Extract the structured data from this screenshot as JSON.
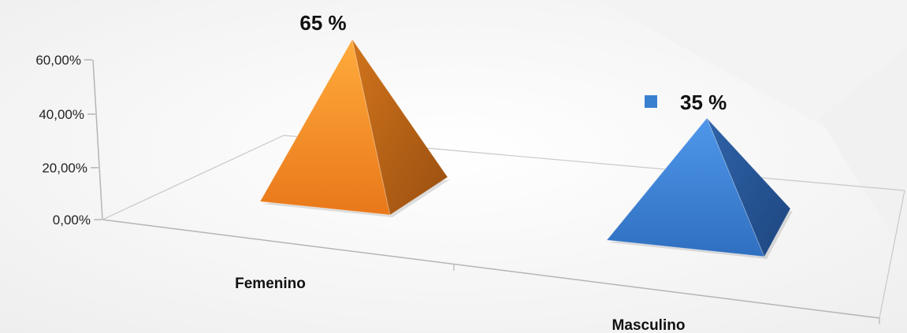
{
  "chart_data": {
    "type": "bar",
    "style": "3d-pyramid",
    "categories": [
      "Femenino",
      "Masculino"
    ],
    "series": [
      {
        "values": [
          0.65,
          0.35
        ],
        "data_labels": [
          "65 %",
          "35 %"
        ],
        "colors": [
          "#f28a22",
          "#3b7fd0"
        ]
      }
    ],
    "y_ticks": [
      "0,00%",
      "20,00%",
      "40,00%",
      "60,00%"
    ],
    "ylim": [
      0,
      0.6
    ],
    "grid": false,
    "legend": false,
    "colors": {
      "orange": "#f28a22",
      "blue": "#3b7fd0",
      "axis": "#b5b5b5"
    }
  }
}
